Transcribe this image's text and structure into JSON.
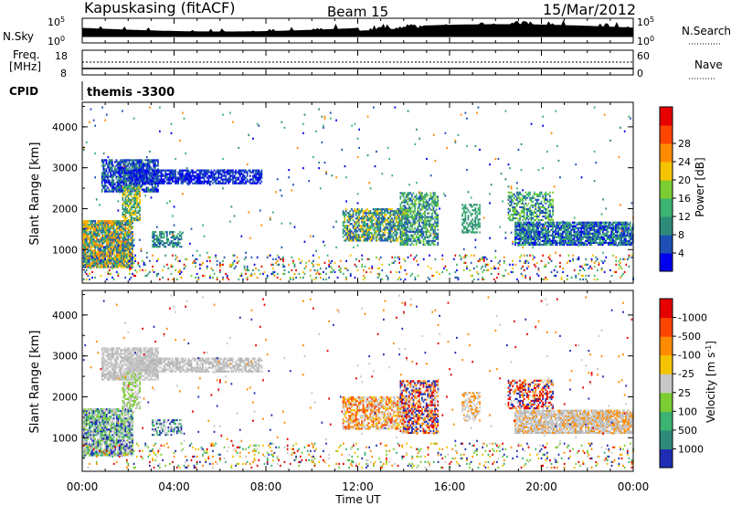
{
  "header": {
    "station": "Kapuskasing (fitACF)",
    "beam": "Beam 15",
    "date": "15/Mar/2012"
  },
  "noise_panel": {
    "left_label": "N.Sky",
    "right_label": "N.Search",
    "left_ticks": [
      "10^5",
      "10^0"
    ],
    "right_ticks": [
      "10^5",
      "10^0"
    ]
  },
  "freq_panel": {
    "left_label_line1": "Freq.",
    "left_label_line2": "[MHz]",
    "right_label": "Nave",
    "left_ticks": [
      "18",
      "8"
    ],
    "right_ticks": [
      "60",
      "0"
    ]
  },
  "cpid": {
    "label": "CPID",
    "value": "themis -3300"
  },
  "chart_data": [
    {
      "type": "heatmap",
      "name": "power",
      "xlabel": "Time UT",
      "ylabel": "Slant Range [km]",
      "x_ticks": [
        "00:00",
        "04:00",
        "08:00",
        "12:00",
        "16:00",
        "20:00",
        "00:00"
      ],
      "y_ticks": [
        "1000",
        "2000",
        "3000",
        "4000"
      ],
      "xlim_hours": [
        0,
        24
      ],
      "ylim_km": [
        180,
        4600
      ],
      "colorbar": {
        "label": "Power [dB]",
        "tick_labels": [
          "4",
          "8",
          "12",
          "16",
          "20",
          "24",
          "28"
        ],
        "colors": [
          "#0000ee",
          "#1e50b4",
          "#2e8b7a",
          "#3cb371",
          "#7ccd32",
          "#f5c400",
          "#ff8c00",
          "#ff4500",
          "#e60000"
        ]
      },
      "scatter_regions": [
        {
          "t": [
            0.0,
            2.2
          ],
          "r": [
            550,
            1700
          ],
          "density": 0.9,
          "colors": [
            "#ff8c00",
            "#f5c400",
            "#3cb371",
            "#2e8b7a",
            "#1e50b4"
          ]
        },
        {
          "t": [
            0.8,
            3.3
          ],
          "r": [
            2400,
            3200
          ],
          "density": 0.8,
          "colors": [
            "#1e50b4",
            "#0000ee",
            "#2e8b7a"
          ]
        },
        {
          "t": [
            2.0,
            7.8
          ],
          "r": [
            2600,
            2950
          ],
          "density": 0.75,
          "colors": [
            "#0000ee",
            "#1e50b4"
          ]
        },
        {
          "t": [
            1.7,
            2.5
          ],
          "r": [
            1700,
            2600
          ],
          "density": 0.7,
          "colors": [
            "#2e8b7a",
            "#3cb371",
            "#f5c400"
          ]
        },
        {
          "t": [
            3.0,
            4.3
          ],
          "r": [
            1050,
            1450
          ],
          "density": 0.55,
          "colors": [
            "#2e8b7a",
            "#1e50b4",
            "#3cb371"
          ]
        },
        {
          "t": [
            11.3,
            14.2
          ],
          "r": [
            1200,
            2000
          ],
          "density": 0.7,
          "colors": [
            "#1e50b4",
            "#2e8b7a",
            "#3cb371",
            "#f5c400"
          ]
        },
        {
          "t": [
            13.8,
            15.5
          ],
          "r": [
            1100,
            2400
          ],
          "density": 0.65,
          "colors": [
            "#1e50b4",
            "#2e8b7a",
            "#3cb371",
            "#7ccd32"
          ]
        },
        {
          "t": [
            16.5,
            17.3
          ],
          "r": [
            1400,
            2100
          ],
          "density": 0.5,
          "colors": [
            "#2e8b7a",
            "#3cb371"
          ]
        },
        {
          "t": [
            18.8,
            24.0
          ],
          "r": [
            1100,
            1700
          ],
          "density": 0.85,
          "colors": [
            "#1e50b4",
            "#0000ee",
            "#2e8b7a",
            "#3cb371"
          ]
        },
        {
          "t": [
            18.5,
            20.5
          ],
          "r": [
            1700,
            2400
          ],
          "density": 0.55,
          "colors": [
            "#1e50b4",
            "#3cb371",
            "#7ccd32"
          ]
        }
      ],
      "sparse_regions": [
        {
          "t": [
            0.0,
            24.0
          ],
          "r": [
            250,
            900
          ],
          "density": 0.12,
          "colors": [
            "#0000ee",
            "#1e50b4",
            "#2e8b7a",
            "#3cb371",
            "#7ccd32",
            "#f5c400",
            "#ff8c00",
            "#e60000"
          ]
        },
        {
          "t": [
            0.0,
            24.0
          ],
          "r": [
            900,
            4500
          ],
          "density": 0.01,
          "colors": [
            "#0000ee",
            "#1e50b4",
            "#2e8b7a",
            "#3cb371",
            "#ff8c00"
          ]
        }
      ]
    },
    {
      "type": "heatmap",
      "name": "velocity",
      "xlabel": "Time UT",
      "ylabel": "Slant Range [km]",
      "x_ticks": [
        "00:00",
        "04:00",
        "08:00",
        "12:00",
        "16:00",
        "20:00",
        "00:00"
      ],
      "y_ticks": [
        "1000",
        "2000",
        "3000",
        "4000"
      ],
      "xlim_hours": [
        0,
        24
      ],
      "ylim_km": [
        180,
        4600
      ],
      "colorbar": {
        "label": "Velocity [m s^-1]",
        "tick_labels": [
          "1000",
          "500",
          "100",
          "25",
          "-25",
          "-100",
          "-500",
          "-1000"
        ],
        "colors": [
          "#1e2db4",
          "#2e8b7a",
          "#3cb371",
          "#7ccd32",
          "#c8c8c8",
          "#f5c400",
          "#ff8c00",
          "#ff4500",
          "#e60000"
        ]
      },
      "scatter_regions": [
        {
          "t": [
            0.0,
            2.2
          ],
          "r": [
            550,
            1700
          ],
          "density": 0.85,
          "colors": [
            "#c8c8c8",
            "#c8c8c8",
            "#3cb371",
            "#7ccd32",
            "#1e2db4"
          ]
        },
        {
          "t": [
            0.8,
            3.3
          ],
          "r": [
            2400,
            3200
          ],
          "density": 0.75,
          "colors": [
            "#c8c8c8",
            "#c8c8c8",
            "#b4b4b4"
          ]
        },
        {
          "t": [
            2.0,
            7.8
          ],
          "r": [
            2600,
            2950
          ],
          "density": 0.7,
          "colors": [
            "#c8c8c8",
            "#b4b4b4"
          ]
        },
        {
          "t": [
            1.7,
            2.5
          ],
          "r": [
            1700,
            2600
          ],
          "density": 0.65,
          "colors": [
            "#c8c8c8",
            "#7ccd32"
          ]
        },
        {
          "t": [
            3.0,
            4.3
          ],
          "r": [
            1050,
            1450
          ],
          "density": 0.55,
          "colors": [
            "#1e2db4",
            "#3cb371",
            "#c8c8c8"
          ]
        },
        {
          "t": [
            11.3,
            14.2
          ],
          "r": [
            1200,
            2000
          ],
          "density": 0.7,
          "colors": [
            "#c8c8c8",
            "#ff8c00",
            "#ff4500",
            "#f5c400",
            "#c8c8c8"
          ]
        },
        {
          "t": [
            13.8,
            15.5
          ],
          "r": [
            1100,
            2400
          ],
          "density": 0.65,
          "colors": [
            "#ff8c00",
            "#e60000",
            "#c8c8c8",
            "#1e2db4"
          ]
        },
        {
          "t": [
            16.5,
            17.3
          ],
          "r": [
            1400,
            2100
          ],
          "density": 0.5,
          "colors": [
            "#c8c8c8",
            "#ff8c00"
          ]
        },
        {
          "t": [
            18.8,
            24.0
          ],
          "r": [
            1100,
            1700
          ],
          "density": 0.85,
          "colors": [
            "#c8c8c8",
            "#c8c8c8",
            "#b4b4b4",
            "#ff8c00"
          ]
        },
        {
          "t": [
            18.5,
            20.5
          ],
          "r": [
            1700,
            2400
          ],
          "density": 0.55,
          "colors": [
            "#ff8c00",
            "#e60000",
            "#c8c8c8",
            "#1e2db4"
          ]
        }
      ],
      "sparse_regions": [
        {
          "t": [
            0.0,
            24.0
          ],
          "r": [
            250,
            900
          ],
          "density": 0.12,
          "colors": [
            "#1e2db4",
            "#3cb371",
            "#7ccd32",
            "#c8c8c8",
            "#f5c400",
            "#ff8c00",
            "#e60000"
          ]
        },
        {
          "t": [
            0.0,
            24.0
          ],
          "r": [
            900,
            4500
          ],
          "density": 0.01,
          "colors": [
            "#1e2db4",
            "#c8c8c8",
            "#ff8c00",
            "#e60000"
          ]
        }
      ]
    }
  ]
}
